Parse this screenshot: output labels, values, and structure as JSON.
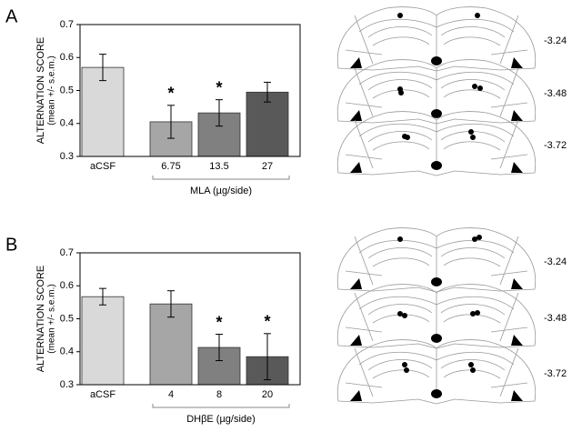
{
  "panels": [
    {
      "label": "A",
      "sections": [
        "-3.24",
        "-3.48",
        "-3.72"
      ]
    },
    {
      "label": "B",
      "sections": [
        "-3.24",
        "-3.48",
        "-3.72"
      ]
    }
  ],
  "chart_data": [
    {
      "type": "bar",
      "categories": [
        "aCSF",
        "6.75",
        "13.5",
        "27"
      ],
      "values": [
        0.57,
        0.405,
        0.432,
        0.495
      ],
      "errors": [
        0.04,
        0.05,
        0.04,
        0.03
      ],
      "colors": [
        "#d9d9d9",
        "#a6a6a6",
        "#808080",
        "#595959"
      ],
      "markers": [
        null,
        "*",
        "*",
        null
      ],
      "ylabel": [
        "ALTERNATION SCORE",
        "(mean +/- s.e.m.)"
      ],
      "xlabel": "MLA (µg/side)",
      "ylim": [
        0.3,
        0.7
      ],
      "yticks": [
        0.3,
        0.4,
        0.5,
        0.6,
        0.7
      ]
    },
    {
      "type": "bar",
      "categories": [
        "aCSF",
        "4",
        "8",
        "20"
      ],
      "values": [
        0.567,
        0.545,
        0.413,
        0.385
      ],
      "errors": [
        0.025,
        0.04,
        0.04,
        0.07
      ],
      "colors": [
        "#d9d9d9",
        "#a6a6a6",
        "#808080",
        "#595959"
      ],
      "markers": [
        null,
        null,
        "*",
        "*"
      ],
      "ylabel": [
        "ALTERNATION SCORE",
        "(mean +/- s.e.m.)"
      ],
      "xlabel": "DHβE (µg/side)",
      "ylim": [
        0.3,
        0.7
      ],
      "yticks": [
        0.3,
        0.4,
        0.5,
        0.6,
        0.7
      ]
    }
  ]
}
